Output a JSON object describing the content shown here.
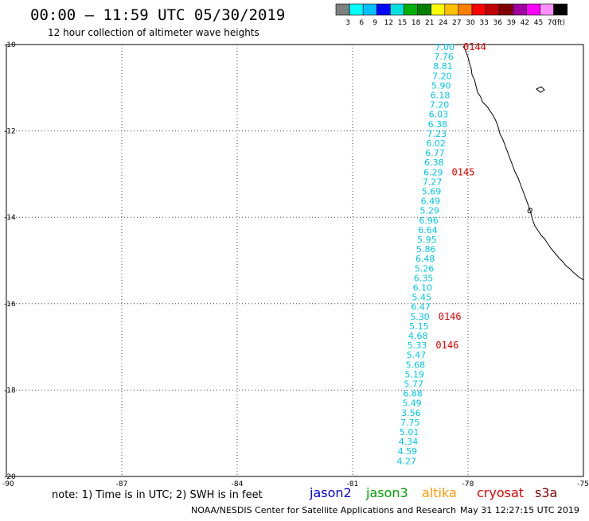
{
  "header": {
    "title": "00:00 – 11:59 UTC 05/30/2019",
    "subtitle": "12 hour collection of altimeter wave heights"
  },
  "colorbar": {
    "colors": [
      "#808080",
      "#00ffff",
      "#00c0ff",
      "#0000ff",
      "#00e0e0",
      "#00b000",
      "#008000",
      "#ffff00",
      "#ffc000",
      "#ff8000",
      "#ff0000",
      "#c00000",
      "#800000",
      "#a000a0",
      "#ff00ff",
      "#ff90ff",
      "#000000"
    ],
    "labels": [
      "3",
      "6",
      "9",
      "12",
      "15",
      "18",
      "21",
      "24",
      "27",
      "30",
      "33",
      "36",
      "39",
      "42",
      "45",
      "70",
      "(ft)"
    ]
  },
  "map": {
    "lon_range": [
      -90,
      -75
    ],
    "lat_range": [
      -20,
      -10
    ],
    "lon_ticks": [
      -90,
      -87,
      -84,
      -81,
      -78,
      -75
    ],
    "lat_ticks": [
      -10,
      -12,
      -14,
      -16,
      -18,
      -20
    ],
    "lon_tick_labels": [
      "-90",
      "-87",
      "-84",
      "-81",
      "-78",
      "-75"
    ],
    "lat_tick_labels": [
      "-10",
      "-12",
      "-14",
      "-16",
      "-18",
      "-20"
    ],
    "coastline_color": "#000000",
    "track_text_color": "#00c8e6"
  },
  "track": {
    "heights": [
      "7.00",
      "7.76",
      "8.81",
      "7.20",
      "5.90",
      "6.18",
      "7.20",
      "6.03",
      "6.38",
      "7.23",
      "6.02",
      "6.77",
      "6.38",
      "6.29",
      "7.27",
      "5.69",
      "6.49",
      "5.29",
      "6.96",
      "6.64",
      "5.95",
      "5.86",
      "6.48",
      "5.26",
      "6.35",
      "6.10",
      "5.45",
      "6.47",
      "5.30",
      "5.15",
      "4.68",
      "5.33",
      "5.47",
      "5.68",
      "5.19",
      "5.77",
      "6.88",
      "5.49",
      "3.56",
      "7.75",
      "5.01",
      "4.34",
      "4.59",
      "4.27"
    ],
    "time_labels": [
      {
        "text": "0144",
        "row": 0
      },
      {
        "text": "0145",
        "row": 13
      },
      {
        "text": "0146",
        "row": 28
      },
      {
        "text": "0146",
        "row": 31
      }
    ]
  },
  "note": "note: 1) Time is in UTC; 2) SWH is in feet",
  "satellites": [
    {
      "name": "jason2",
      "color": "#0000dd"
    },
    {
      "name": "jason3",
      "color": "#00a000"
    },
    {
      "name": "altika",
      "color": "#ff9900"
    },
    {
      "name": "cryosat",
      "color": "#dd0000"
    },
    {
      "name": "s3a",
      "color": "#800000"
    }
  ],
  "footer": {
    "credit": "NOAA/NESDIS Center for Satellite Applications and Research",
    "timestamp": "May 31 12:27:15 UTC 2019"
  }
}
